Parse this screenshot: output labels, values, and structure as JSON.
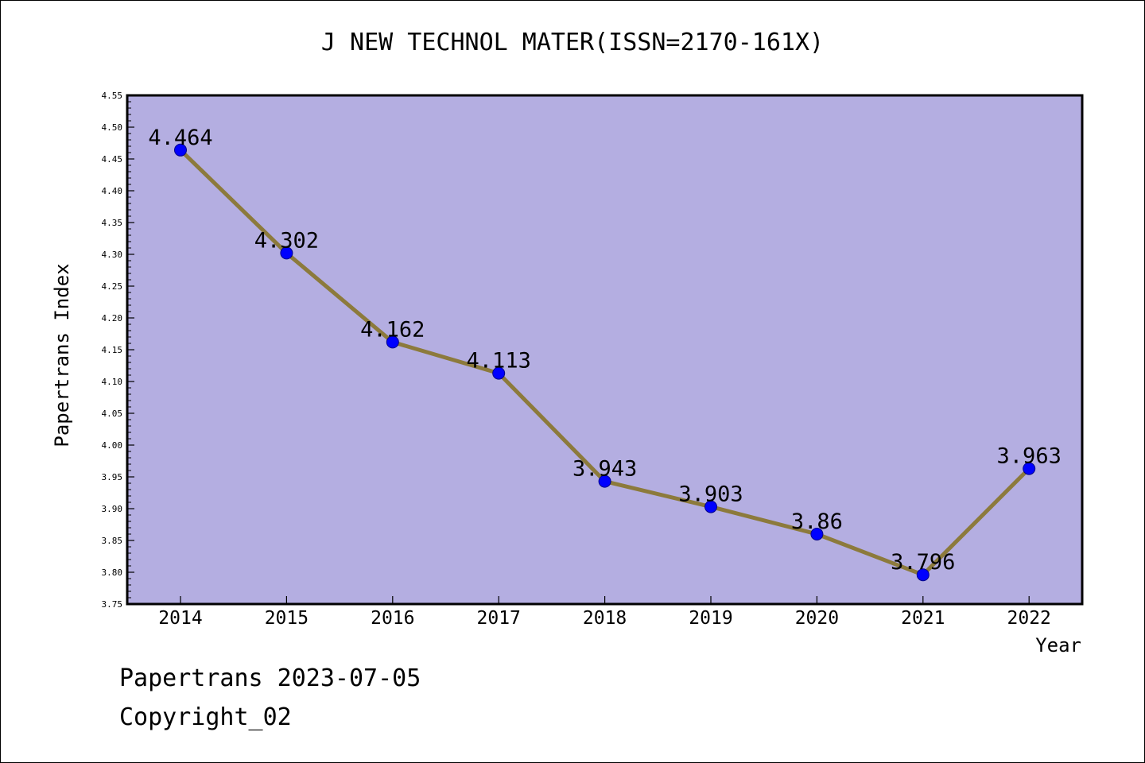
{
  "chart_data": {
    "type": "line",
    "title": "J NEW TECHNOL MATER(ISSN=2170-161X)",
    "xlabel": "Year",
    "ylabel": "Papertrans Index",
    "categories": [
      "2014",
      "2015",
      "2016",
      "2017",
      "2018",
      "2019",
      "2020",
      "2021",
      "2022"
    ],
    "series": [
      {
        "values": [
          4.464,
          4.302,
          4.162,
          4.113,
          3.943,
          3.903,
          3.86,
          3.796,
          3.963
        ]
      }
    ],
    "data_labels": [
      "4.464",
      "4.302",
      "4.162",
      "4.113",
      "3.943",
      "3.903",
      "3.86",
      "3.796",
      "3.963"
    ],
    "ylim": [
      3.75,
      4.55
    ],
    "yticks": [
      "3.75",
      "3.80",
      "3.85",
      "3.90",
      "3.95",
      "4.00",
      "4.05",
      "4.10",
      "4.15",
      "4.20",
      "4.25",
      "4.30",
      "4.35",
      "4.40",
      "4.45",
      "4.50",
      "4.55"
    ],
    "grid": false,
    "legend": "none",
    "colors": {
      "plot_background": "#b4aee1",
      "line": "#8c7a3c",
      "marker": "#0000ff"
    }
  },
  "footer": {
    "date_line": "Papertrans 2023-07-05",
    "copyright_line": "Copyright_02"
  }
}
